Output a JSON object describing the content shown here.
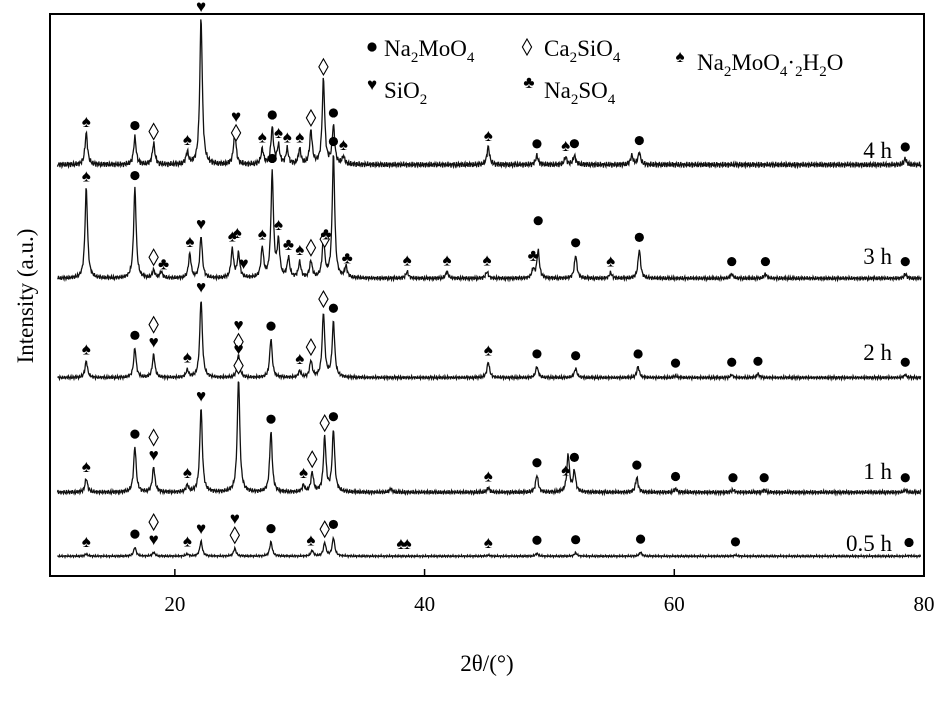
{
  "chart_data": {
    "type": "line",
    "xlabel": "2θ/(°)",
    "ylabel": "Intensity (a.u.)",
    "xlim": [
      10,
      80
    ],
    "x_ticks": [
      20,
      40,
      60,
      80
    ],
    "grid": false,
    "legend_position": "top-right",
    "legend": [
      {
        "symbol": "circle",
        "label": "Na2MoO4"
      },
      {
        "symbol": "diamond",
        "label": "Ca2SiO4"
      },
      {
        "symbol": "spade",
        "label": "Na2MoO4·2H2O"
      },
      {
        "symbol": "heart",
        "label": "SiO2"
      },
      {
        "symbol": "club",
        "label": "Na2SO4"
      }
    ],
    "series": [
      {
        "name": "4 h",
        "baseline": 16,
        "peaks": [
          [
            12.9,
            0.21
          ],
          [
            16.8,
            0.18
          ],
          [
            18.3,
            0.14
          ],
          [
            21.0,
            0.08
          ],
          [
            22.1,
            0.97
          ],
          [
            24.8,
            0.22
          ],
          [
            27.0,
            0.1
          ],
          [
            27.8,
            0.24
          ],
          [
            28.3,
            0.12
          ],
          [
            29.0,
            0.1
          ],
          [
            30.0,
            0.1
          ],
          [
            30.9,
            0.22
          ],
          [
            31.9,
            0.56
          ],
          [
            32.7,
            0.25
          ],
          [
            33.5,
            0.05
          ],
          [
            45.1,
            0.12
          ],
          [
            49.0,
            0.06
          ],
          [
            51.3,
            0.05
          ],
          [
            52.0,
            0.06
          ],
          [
            56.6,
            0.06
          ],
          [
            57.2,
            0.08
          ],
          [
            78.5,
            0.04
          ]
        ],
        "markers": [
          {
            "s": "spade",
            "x": 12.9
          },
          {
            "s": "circle",
            "x": 16.8
          },
          {
            "s": "diamond",
            "x": 18.3
          },
          {
            "s": "spade",
            "x": 21.0
          },
          {
            "s": "heart",
            "x": 22.1
          },
          {
            "s": "diamond",
            "x": 24.9
          },
          {
            "s": "heart",
            "x": 24.9
          },
          {
            "s": "spade",
            "x": 27.0
          },
          {
            "s": "circle",
            "x": 27.8
          },
          {
            "s": "spade",
            "x": 28.3
          },
          {
            "s": "spade",
            "x": 29.0
          },
          {
            "s": "spade",
            "x": 30.0
          },
          {
            "s": "diamond",
            "x": 30.9
          },
          {
            "s": "diamond",
            "x": 31.9
          },
          {
            "s": "circle",
            "x": 32.7
          },
          {
            "s": "spade",
            "x": 33.5
          },
          {
            "s": "spade",
            "x": 45.1
          },
          {
            "s": "circle",
            "x": 49.0
          },
          {
            "s": "spade",
            "x": 51.3
          },
          {
            "s": "circle",
            "x": 52.0
          },
          {
            "s": "circle",
            "x": 57.2
          },
          {
            "s": "circle",
            "x": 78.5
          }
        ]
      },
      {
        "name": "3 h",
        "baseline": 30,
        "peaks": [
          [
            12.9,
            0.82
          ],
          [
            16.8,
            0.82
          ],
          [
            18.3,
            0.07
          ],
          [
            18.9,
            0.06
          ],
          [
            21.2,
            0.22
          ],
          [
            22.1,
            0.38
          ],
          [
            24.6,
            0.26
          ],
          [
            25.1,
            0.22
          ],
          [
            27.0,
            0.27
          ],
          [
            27.8,
            0.95
          ],
          [
            28.3,
            0.32
          ],
          [
            29.1,
            0.18
          ],
          [
            30.0,
            0.14
          ],
          [
            30.9,
            0.15
          ],
          [
            31.9,
            0.35
          ],
          [
            32.7,
            1.12
          ],
          [
            33.7,
            0.1
          ],
          [
            38.6,
            0.06
          ],
          [
            41.8,
            0.06
          ],
          [
            45.0,
            0.06
          ],
          [
            48.7,
            0.08
          ],
          [
            49.1,
            0.25
          ],
          [
            52.1,
            0.21
          ],
          [
            54.9,
            0.05
          ],
          [
            57.2,
            0.26
          ],
          [
            64.6,
            0.04
          ],
          [
            67.3,
            0.04
          ],
          [
            78.5,
            0.04
          ]
        ],
        "markers": [
          {
            "s": "spade",
            "x": 12.9
          },
          {
            "s": "circle",
            "x": 16.8
          },
          {
            "s": "diamond",
            "x": 18.3
          },
          {
            "s": "club",
            "x": 19.1
          },
          {
            "s": "spade",
            "x": 21.2
          },
          {
            "s": "heart",
            "x": 22.1
          },
          {
            "s": "spade",
            "x": 24.6
          },
          {
            "s": "spade",
            "x": 25.0
          },
          {
            "s": "heart",
            "x": 25.5
          },
          {
            "s": "spade",
            "x": 27.0
          },
          {
            "s": "circle",
            "x": 27.8
          },
          {
            "s": "spade",
            "x": 28.3
          },
          {
            "s": "club",
            "x": 29.1
          },
          {
            "s": "spade",
            "x": 30.0
          },
          {
            "s": "diamond",
            "x": 30.9
          },
          {
            "s": "diamond",
            "x": 32.0
          },
          {
            "s": "club",
            "x": 32.1
          },
          {
            "s": "circle",
            "x": 32.7
          },
          {
            "s": "club",
            "x": 33.8
          },
          {
            "s": "spade",
            "x": 38.6
          },
          {
            "s": "spade",
            "x": 41.8
          },
          {
            "s": "spade",
            "x": 45.0
          },
          {
            "s": "club",
            "x": 48.7
          },
          {
            "s": "circle",
            "x": 49.1
          },
          {
            "s": "circle",
            "x": 52.1
          },
          {
            "s": "spade",
            "x": 54.9
          },
          {
            "s": "circle",
            "x": 57.2
          },
          {
            "s": "circle",
            "x": 64.6
          },
          {
            "s": "circle",
            "x": 67.3
          },
          {
            "s": "circle",
            "x": 78.5
          }
        ]
      },
      {
        "name": "2 h",
        "baseline": 16,
        "peaks": [
          [
            12.9,
            0.18
          ],
          [
            16.8,
            0.32
          ],
          [
            18.3,
            0.25
          ],
          [
            21.0,
            0.08
          ],
          [
            22.1,
            0.85
          ],
          [
            25.1,
            0.25
          ],
          [
            27.7,
            0.42
          ],
          [
            30.0,
            0.07
          ],
          [
            30.9,
            0.18
          ],
          [
            31.9,
            0.7
          ],
          [
            32.7,
            0.6
          ],
          [
            45.1,
            0.17
          ],
          [
            49.0,
            0.12
          ],
          [
            52.1,
            0.1
          ],
          [
            57.1,
            0.12
          ],
          [
            60.1,
            0.02
          ],
          [
            64.6,
            0.03
          ],
          [
            66.7,
            0.04
          ],
          [
            78.5,
            0.03
          ]
        ],
        "markers": [
          {
            "s": "spade",
            "x": 12.9
          },
          {
            "s": "circle",
            "x": 16.8
          },
          {
            "s": "heart",
            "x": 18.3
          },
          {
            "s": "diamond",
            "x": 18.3
          },
          {
            "s": "spade",
            "x": 21.0
          },
          {
            "s": "heart",
            "x": 22.1
          },
          {
            "s": "diamond",
            "x": 25.1
          },
          {
            "s": "heart",
            "x": 25.1
          },
          {
            "s": "circle",
            "x": 27.7
          },
          {
            "s": "spade",
            "x": 30.0
          },
          {
            "s": "diamond",
            "x": 30.9
          },
          {
            "s": "diamond",
            "x": 31.9
          },
          {
            "s": "circle",
            "x": 32.7
          },
          {
            "s": "spade",
            "x": 45.1
          },
          {
            "s": "circle",
            "x": 49.0
          },
          {
            "s": "circle",
            "x": 52.1
          },
          {
            "s": "circle",
            "x": 57.1
          },
          {
            "s": "circle",
            "x": 60.1
          },
          {
            "s": "circle",
            "x": 64.6
          },
          {
            "s": "circle",
            "x": 66.7
          },
          {
            "s": "circle",
            "x": 78.5
          }
        ]
      },
      {
        "name": "1 h",
        "baseline": 17,
        "peaks": [
          [
            12.9,
            0.12
          ],
          [
            16.8,
            0.4
          ],
          [
            18.3,
            0.22
          ],
          [
            21.0,
            0.06
          ],
          [
            22.1,
            0.74
          ],
          [
            25.1,
            1.0
          ],
          [
            27.7,
            0.53
          ],
          [
            30.3,
            0.06
          ],
          [
            31.0,
            0.17
          ],
          [
            32.0,
            0.48
          ],
          [
            32.7,
            0.54
          ],
          [
            37.3,
            0.03
          ],
          [
            45.1,
            0.04
          ],
          [
            49.0,
            0.15
          ],
          [
            51.5,
            0.33
          ],
          [
            52.0,
            0.18
          ],
          [
            57.0,
            0.13
          ],
          [
            60.1,
            0.03
          ],
          [
            64.7,
            0.02
          ],
          [
            67.2,
            0.02
          ],
          [
            78.5,
            0.02
          ]
        ],
        "markers": [
          {
            "s": "spade",
            "x": 12.9
          },
          {
            "s": "circle",
            "x": 16.8
          },
          {
            "s": "heart",
            "x": 18.3
          },
          {
            "s": "diamond",
            "x": 18.3
          },
          {
            "s": "spade",
            "x": 21.0
          },
          {
            "s": "heart",
            "x": 22.1
          },
          {
            "s": "diamond",
            "x": 25.1
          },
          {
            "s": "heart",
            "x": 25.1
          },
          {
            "s": "circle",
            "x": 27.7
          },
          {
            "s": "spade",
            "x": 30.3
          },
          {
            "s": "diamond",
            "x": 31.0
          },
          {
            "s": "diamond",
            "x": 32.0
          },
          {
            "s": "circle",
            "x": 32.7
          },
          {
            "s": "spade",
            "x": 45.1
          },
          {
            "s": "circle",
            "x": 49.0
          },
          {
            "s": "spade",
            "x": 51.3
          },
          {
            "s": "circle",
            "x": 52.0
          },
          {
            "s": "circle",
            "x": 57.0
          },
          {
            "s": "circle",
            "x": 60.1
          },
          {
            "s": "circle",
            "x": 64.7
          },
          {
            "s": "circle",
            "x": 67.2
          },
          {
            "s": "circle",
            "x": 78.5
          }
        ]
      },
      {
        "name": "0.5 h",
        "baseline": 16,
        "peaks": [
          [
            12.9,
            0.04
          ],
          [
            16.8,
            0.16
          ],
          [
            18.3,
            0.07
          ],
          [
            21.0,
            0.04
          ],
          [
            22.1,
            0.27
          ],
          [
            24.8,
            0.14
          ],
          [
            27.7,
            0.26
          ],
          [
            31.0,
            0.1
          ],
          [
            32.0,
            0.24
          ],
          [
            32.7,
            0.33
          ],
          [
            45.1,
            0.02
          ],
          [
            49.0,
            0.05
          ],
          [
            52.1,
            0.06
          ],
          [
            57.3,
            0.07
          ],
          [
            64.9,
            0.02
          ],
          [
            78.8,
            0.01
          ]
        ],
        "markers": [
          {
            "s": "spade",
            "x": 12.9
          },
          {
            "s": "circle",
            "x": 16.8
          },
          {
            "s": "heart",
            "x": 18.3
          },
          {
            "s": "diamond",
            "x": 18.3
          },
          {
            "s": "spade",
            "x": 21.0
          },
          {
            "s": "heart",
            "x": 22.1
          },
          {
            "s": "diamond",
            "x": 24.8
          },
          {
            "s": "heart",
            "x": 24.8
          },
          {
            "s": "circle",
            "x": 27.7
          },
          {
            "s": "spade",
            "x": 30.9
          },
          {
            "s": "diamond",
            "x": 32.0
          },
          {
            "s": "circle",
            "x": 32.7
          },
          {
            "s": "spade",
            "x": 38.1
          },
          {
            "s": "spade",
            "x": 38.6
          },
          {
            "s": "spade",
            "x": 45.1
          },
          {
            "s": "circle",
            "x": 49.0
          },
          {
            "s": "circle",
            "x": 52.1
          },
          {
            "s": "circle",
            "x": 57.3
          },
          {
            "s": "circle",
            "x": 64.9
          },
          {
            "s": "circle",
            "x": 78.8
          }
        ]
      }
    ]
  }
}
